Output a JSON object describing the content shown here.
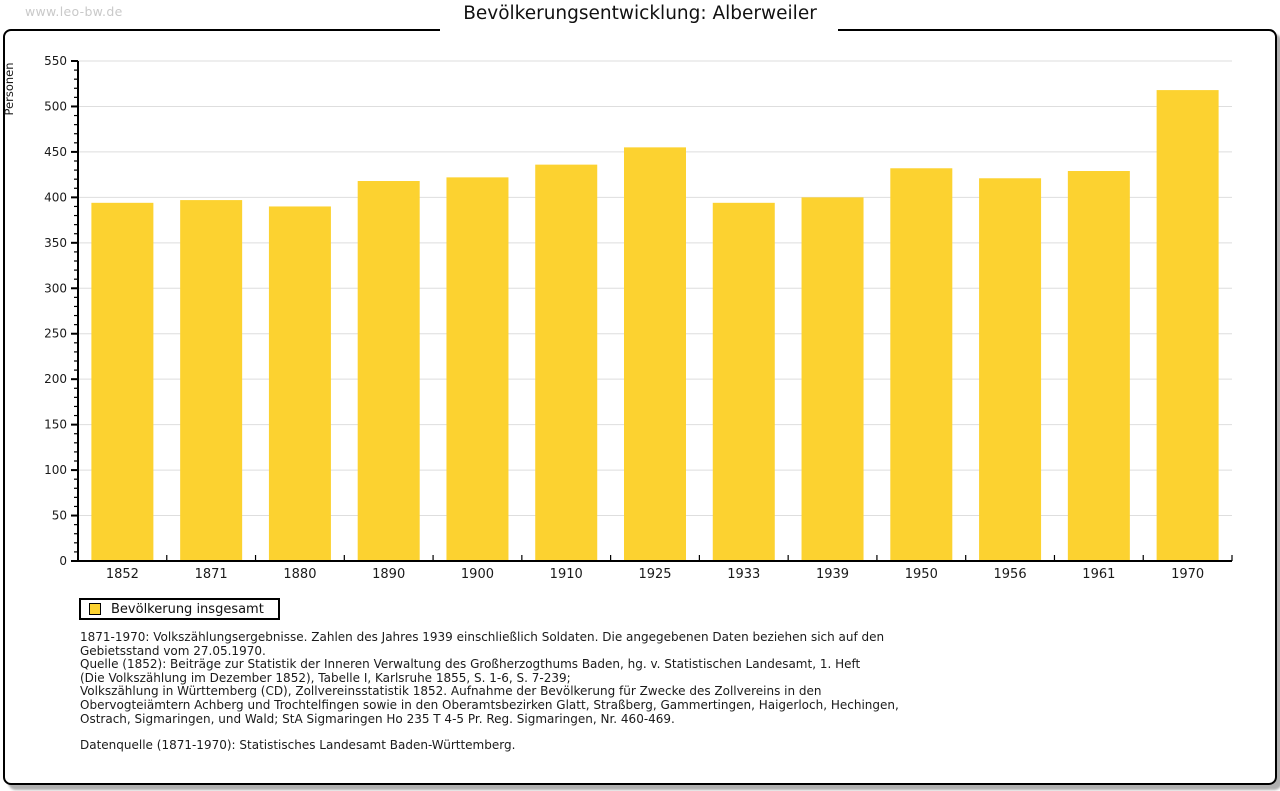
{
  "watermark": "www.leo-bw.de",
  "title": "Bevölkerungsentwicklung: Alberweiler",
  "chart_data": {
    "type": "bar",
    "title": "Bevölkerungsentwicklung: Alberweiler",
    "xlabel": "",
    "ylabel": "Personen",
    "categories": [
      "1852",
      "1871",
      "1880",
      "1890",
      "1900",
      "1910",
      "1925",
      "1933",
      "1939",
      "1950",
      "1956",
      "1961",
      "1970"
    ],
    "series": [
      {
        "name": "Bevölkerung insgesamt",
        "values": [
          394,
          397,
          390,
          418,
          422,
          436,
          455,
          394,
          400,
          432,
          421,
          429,
          518
        ]
      }
    ],
    "ylim": [
      0,
      550
    ],
    "y_major_step": 50,
    "y_minor_step": 10,
    "grid": true,
    "legend_position": "bottom-left",
    "bar_color": "#fcd230",
    "grid_color": "#dedede",
    "axis_color": "#000000"
  },
  "legend": {
    "items": [
      {
        "label": "Bevölkerung insgesamt",
        "color": "#fcd230"
      }
    ]
  },
  "footer": {
    "note_lines": [
      "1871-1970: Volkszählungsergebnisse. Zahlen des Jahres 1939 einschließlich Soldaten. Die angegebenen Daten beziehen sich auf den",
      "Gebietsstand vom 27.05.1970.",
      "Quelle (1852): Beiträge zur Statistik der Inneren Verwaltung des Großherzogthums Baden, hg. v. Statistischen Landesamt, 1. Heft",
      "(Die Volkszählung im Dezember 1852), Tabelle I, Karlsruhe 1855, S. 1-6, S. 7-239;",
      "Volkszählung in Württemberg (CD), Zollvereinsstatistik 1852. Aufnahme der Bevölkerung für Zwecke des Zollvereins in den",
      "Obervogteiämtern Achberg und Trochtelfingen sowie in den Oberamtsbezirken Glatt, Straßberg, Gammertingen, Haigerloch, Hechingen,",
      "Ostrach, Sigmaringen, und Wald; StA Sigmaringen Ho 235 T 4-5 Pr. Reg. Sigmaringen, Nr. 460-469."
    ],
    "source_line": "Datenquelle (1871-1970): Statistisches Landesamt Baden-Württemberg."
  }
}
